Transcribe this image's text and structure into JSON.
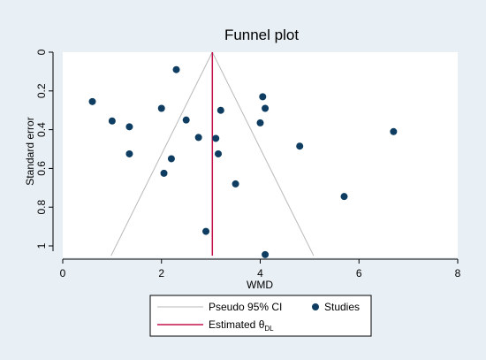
{
  "chart_data": {
    "type": "scatter",
    "title": "Funnel plot",
    "xlabel": "WMD",
    "ylabel": "Standard error",
    "xlim": [
      0,
      8
    ],
    "ylim": [
      0,
      1.05
    ],
    "y_axis_reversed": true,
    "xticks": [
      "0",
      "2",
      "4",
      "6",
      "8"
    ],
    "yticks": [
      "0",
      "0.2",
      "0.4",
      "0.6",
      "0.8",
      "1"
    ],
    "grid": false,
    "legend_position": "bottom",
    "colors": {
      "outer_background": "#e8eff5",
      "plot_background": "#ffffff",
      "studies": "#0e3d61",
      "estimate": "#c4124a",
      "pseudo_ci": "#b9b9b9"
    },
    "estimated_effect": 3.03,
    "pseudo_ci": {
      "apex": [
        3.03,
        0
      ],
      "lower_end": [
        0.98,
        1.05
      ],
      "upper_end": [
        5.08,
        1.05
      ]
    },
    "legend": [
      {
        "label": "Pseudo 95% CI",
        "marker": "line",
        "color": "#b9b9b9"
      },
      {
        "label": "Studies",
        "marker": "dot",
        "color": "#0e3d61"
      },
      {
        "label": "Estimated θ",
        "subscript": "DL",
        "marker": "line",
        "color": "#c4124a"
      }
    ],
    "series": [
      {
        "name": "Studies",
        "points": [
          {
            "x": 2.3,
            "y": 0.09
          },
          {
            "x": 4.05,
            "y": 0.23
          },
          {
            "x": 0.6,
            "y": 0.255
          },
          {
            "x": 4.1,
            "y": 0.29
          },
          {
            "x": 2.0,
            "y": 0.29
          },
          {
            "x": 3.2,
            "y": 0.3
          },
          {
            "x": 1.0,
            "y": 0.355
          },
          {
            "x": 2.5,
            "y": 0.35
          },
          {
            "x": 4.0,
            "y": 0.365
          },
          {
            "x": 1.35,
            "y": 0.385
          },
          {
            "x": 6.7,
            "y": 0.41
          },
          {
            "x": 2.75,
            "y": 0.44
          },
          {
            "x": 3.1,
            "y": 0.445
          },
          {
            "x": 4.8,
            "y": 0.485
          },
          {
            "x": 1.35,
            "y": 0.525
          },
          {
            "x": 3.15,
            "y": 0.525
          },
          {
            "x": 2.2,
            "y": 0.55
          },
          {
            "x": 2.05,
            "y": 0.625
          },
          {
            "x": 3.5,
            "y": 0.68
          },
          {
            "x": 5.7,
            "y": 0.745
          },
          {
            "x": 2.9,
            "y": 0.925
          },
          {
            "x": 4.1,
            "y": 1.045
          }
        ]
      }
    ]
  }
}
